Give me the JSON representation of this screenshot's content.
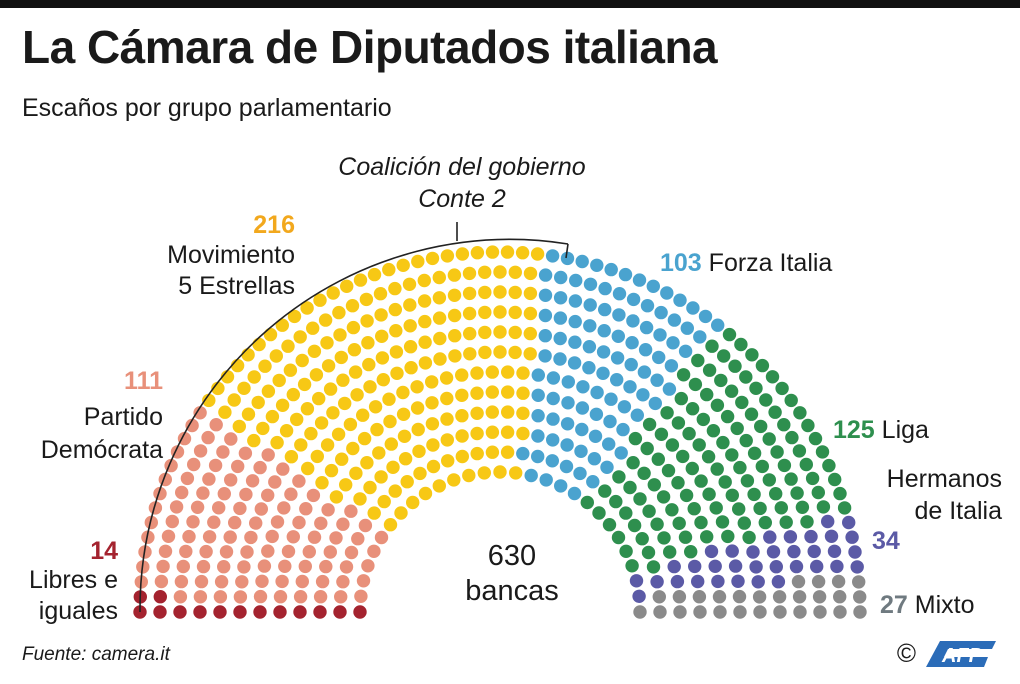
{
  "header": {
    "title": "La Cámara de Diputados italiana",
    "subtitle": "Escaños por grupo parlamentario"
  },
  "footer": {
    "source": "Fuente: camera.it",
    "copyright": "©",
    "agency": "AFP"
  },
  "annotations": {
    "coalition_line1": "Coalición del gobierno",
    "coalition_line2": "Conte 2",
    "total_value": "630",
    "total_label": "bancas"
  },
  "chart_data": {
    "type": "parliament",
    "total_seats": 630,
    "groups": [
      {
        "name": "Libres e iguales",
        "label_lines": [
          "Libres e",
          "iguales"
        ],
        "seats": 14,
        "color": "#a4232f"
      },
      {
        "name": "Partido Demócrata",
        "label_lines": [
          "Partido",
          "Demócrata"
        ],
        "seats": 111,
        "color": "#e8907a"
      },
      {
        "name": "Movimiento 5 Estrellas",
        "label_lines": [
          "Movimiento",
          "5 Estrellas"
        ],
        "seats": 216,
        "color": "#f7c815"
      },
      {
        "name": "Forza Italia",
        "label_lines": [
          "Forza Italia"
        ],
        "seats": 103,
        "color": "#4aa3cf"
      },
      {
        "name": "Liga",
        "label_lines": [
          "Liga"
        ],
        "seats": 125,
        "color": "#2e8f4e"
      },
      {
        "name": "Hermanos de Italia",
        "label_lines": [
          "Hermanos",
          "de Italia"
        ],
        "seats": 34,
        "color": "#5b5aa6"
      },
      {
        "name": "Mixto",
        "label_lines": [
          "Mixto"
        ],
        "seats": 27,
        "color": "#8a8a8a"
      }
    ],
    "coalition": [
      "Libres e iguales",
      "Partido Demócrata",
      "Movimiento 5 Estrellas"
    ]
  }
}
